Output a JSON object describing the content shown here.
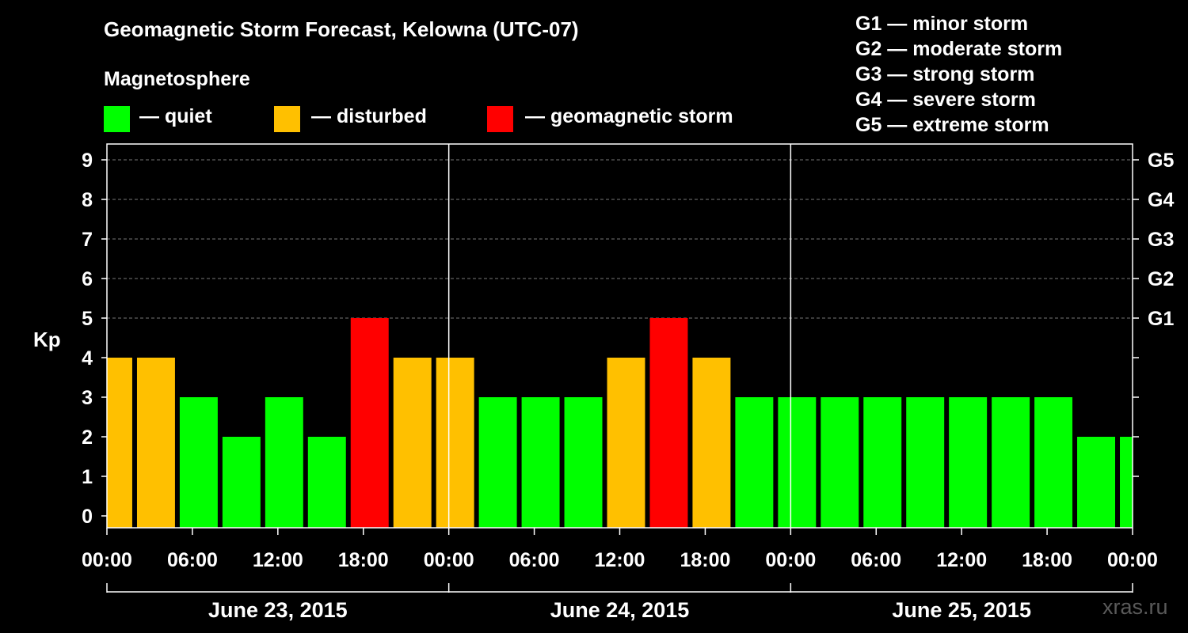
{
  "header": {
    "title": "Geomagnetic Storm Forecast, Kelowna (UTC-07)",
    "section_label": "Magnetosphere",
    "legend": [
      {
        "label": "— quiet",
        "color": "#00ff00"
      },
      {
        "label": "— disturbed",
        "color": "#ffc000"
      },
      {
        "label": "— geomagnetic storm",
        "color": "#ff0000"
      }
    ]
  },
  "storm_scale": [
    "G1 — minor storm",
    "G2 — moderate storm",
    "G3 — strong storm",
    "G4 — severe storm",
    "G5 — extreme storm"
  ],
  "watermark": "xras.ru",
  "chart_data": {
    "type": "bar",
    "ylabel": "Kp",
    "ylim": [
      0,
      9
    ],
    "y_ticks": [
      "0",
      "1",
      "2",
      "3",
      "4",
      "5",
      "6",
      "7",
      "8",
      "9"
    ],
    "right_ticks": [
      {
        "value": 5,
        "label": "G1"
      },
      {
        "value": 6,
        "label": "G2"
      },
      {
        "value": 7,
        "label": "G3"
      },
      {
        "value": 8,
        "label": "G4"
      },
      {
        "value": 9,
        "label": "G5"
      }
    ],
    "x_ticks": [
      "00:00",
      "06:00",
      "12:00",
      "18:00",
      "00:00",
      "06:00",
      "12:00",
      "18:00",
      "00:00",
      "06:00",
      "12:00",
      "18:00",
      "00:00"
    ],
    "days": [
      "June 23, 2015",
      "June 24, 2015",
      "June 25, 2015"
    ],
    "hours_total": 72,
    "grid": "dashed horizontal at Kp 5-9",
    "colors": {
      "quiet": "#00ff00",
      "disturbed": "#ffc000",
      "storm": "#ff0000"
    },
    "bars": [
      {
        "start_hour": -1,
        "kp": 4,
        "level": "disturbed"
      },
      {
        "start_hour": 2,
        "kp": 4,
        "level": "disturbed"
      },
      {
        "start_hour": 5,
        "kp": 3,
        "level": "quiet"
      },
      {
        "start_hour": 8,
        "kp": 2,
        "level": "quiet"
      },
      {
        "start_hour": 11,
        "kp": 3,
        "level": "quiet"
      },
      {
        "start_hour": 14,
        "kp": 2,
        "level": "quiet"
      },
      {
        "start_hour": 17,
        "kp": 5,
        "level": "storm"
      },
      {
        "start_hour": 20,
        "kp": 4,
        "level": "disturbed"
      },
      {
        "start_hour": 23,
        "kp": 4,
        "level": "disturbed"
      },
      {
        "start_hour": 26,
        "kp": 3,
        "level": "quiet"
      },
      {
        "start_hour": 29,
        "kp": 3,
        "level": "quiet"
      },
      {
        "start_hour": 32,
        "kp": 3,
        "level": "quiet"
      },
      {
        "start_hour": 35,
        "kp": 4,
        "level": "disturbed"
      },
      {
        "start_hour": 38,
        "kp": 5,
        "level": "storm"
      },
      {
        "start_hour": 41,
        "kp": 4,
        "level": "disturbed"
      },
      {
        "start_hour": 44,
        "kp": 3,
        "level": "quiet"
      },
      {
        "start_hour": 47,
        "kp": 3,
        "level": "quiet"
      },
      {
        "start_hour": 50,
        "kp": 3,
        "level": "quiet"
      },
      {
        "start_hour": 53,
        "kp": 3,
        "level": "quiet"
      },
      {
        "start_hour": 56,
        "kp": 3,
        "level": "quiet"
      },
      {
        "start_hour": 59,
        "kp": 3,
        "level": "quiet"
      },
      {
        "start_hour": 62,
        "kp": 3,
        "level": "quiet"
      },
      {
        "start_hour": 65,
        "kp": 3,
        "level": "quiet"
      },
      {
        "start_hour": 68,
        "kp": 2,
        "level": "quiet"
      },
      {
        "start_hour": 71,
        "kp": 2,
        "level": "quiet"
      }
    ]
  }
}
